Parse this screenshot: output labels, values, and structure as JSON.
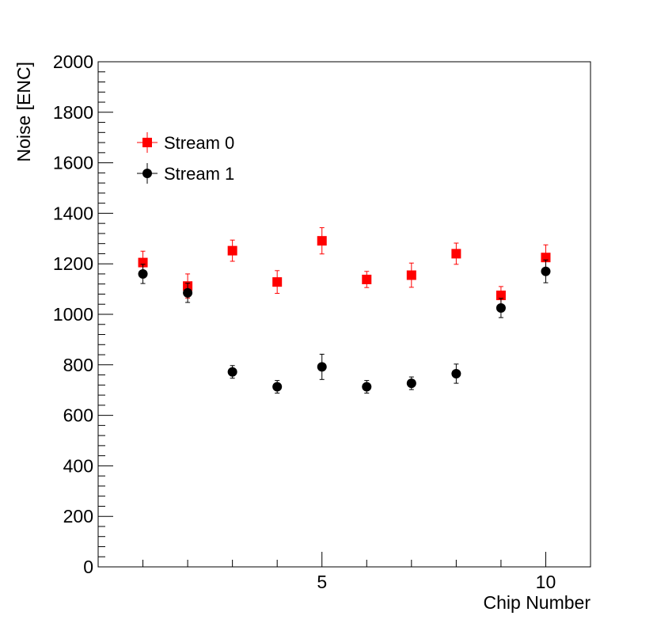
{
  "chart_data": {
    "type": "scatter",
    "title": "",
    "xlabel": "Chip Number",
    "ylabel": "Noise [ENC]",
    "xlim": [
      0,
      11
    ],
    "ylim": [
      0,
      2000
    ],
    "x_ticks": [
      5,
      10
    ],
    "y_ticks": [
      0,
      200,
      400,
      600,
      800,
      1000,
      1200,
      1400,
      1600,
      1800,
      2000
    ],
    "grid": false,
    "legend_position": "top-left",
    "series": [
      {
        "name": "Stream 0",
        "marker": "square",
        "color": "#ff0000",
        "x": [
          1,
          2,
          3,
          4,
          5,
          6,
          7,
          8,
          9,
          10
        ],
        "y": [
          1205,
          1112,
          1252,
          1128,
          1291,
          1138,
          1155,
          1240,
          1075,
          1225
        ],
        "y_err": [
          45,
          48,
          42,
          45,
          52,
          32,
          48,
          42,
          35,
          50
        ]
      },
      {
        "name": "Stream 1",
        "marker": "circle",
        "color": "#000000",
        "x": [
          1,
          2,
          3,
          4,
          5,
          6,
          7,
          8,
          9,
          10
        ],
        "y": [
          1160,
          1085,
          772,
          713,
          792,
          713,
          727,
          765,
          1025,
          1170
        ],
        "y_err": [
          38,
          38,
          25,
          25,
          50,
          25,
          25,
          38,
          38,
          45
        ]
      }
    ]
  }
}
